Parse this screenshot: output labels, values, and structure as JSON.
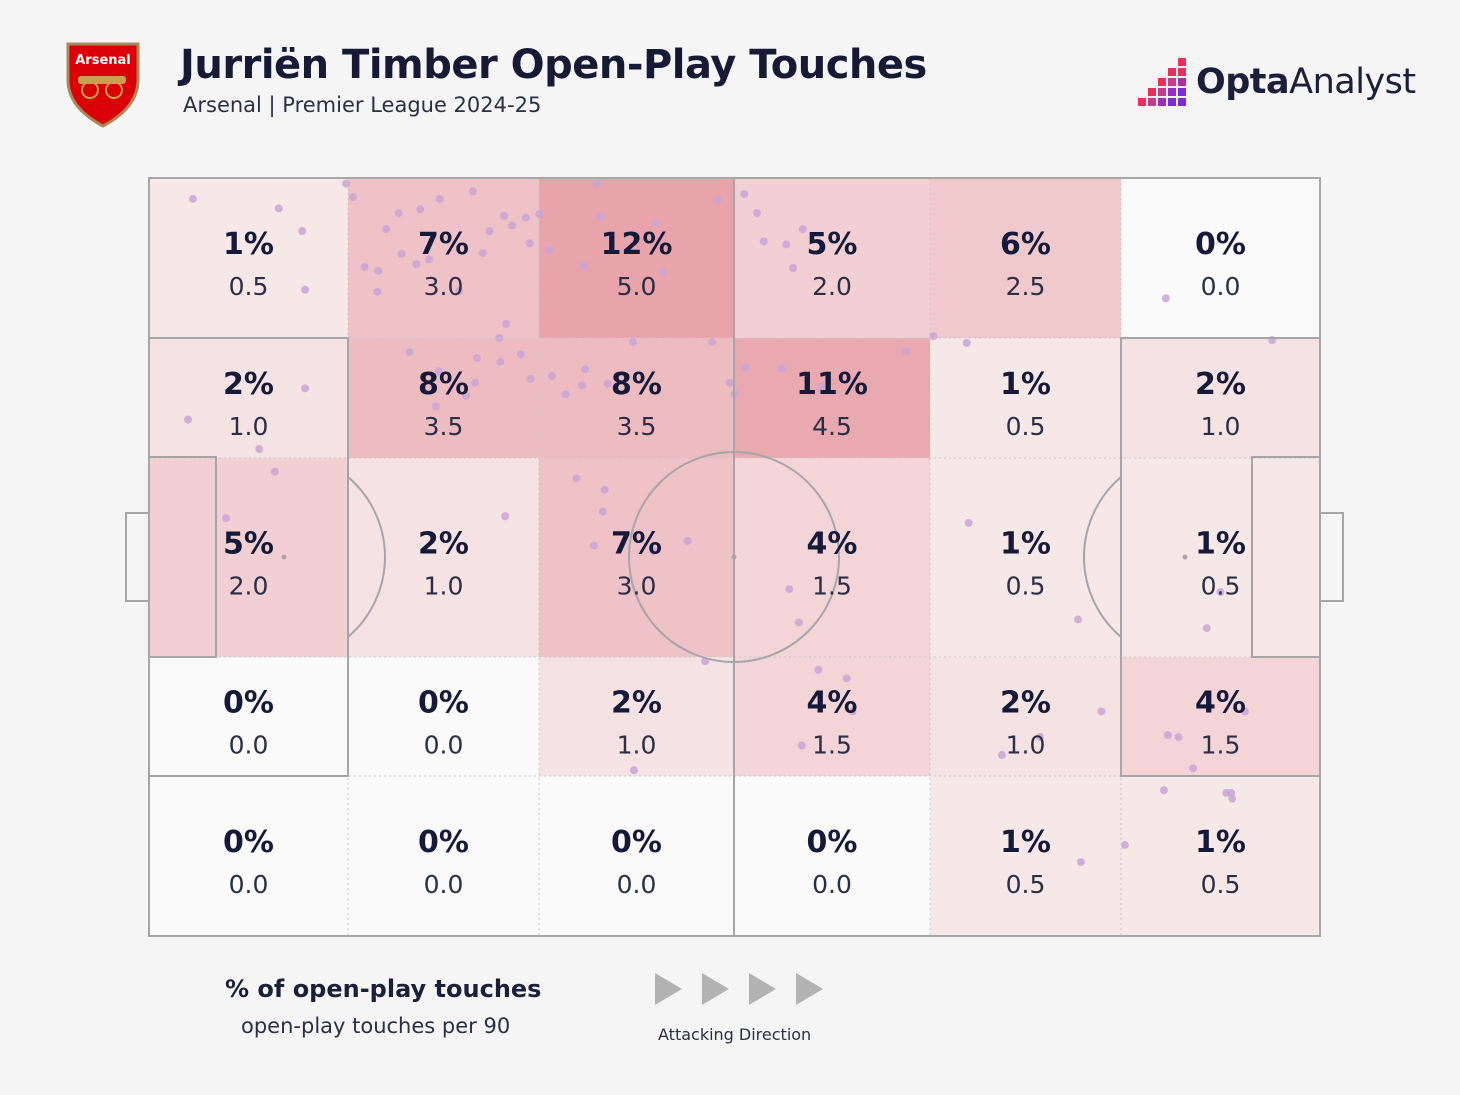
{
  "header": {
    "title": "Jurriën Timber Open-Play Touches",
    "subtitle": "Arsenal | Premier League 2024-25",
    "crest_text": "Arsenal",
    "brand_bold": "Opta",
    "brand_light": "Analyst"
  },
  "colors": {
    "background": "#f5f5f5",
    "heat_max": "#e8a3ab",
    "heat_min": "#f8eeee",
    "line": "#a6a6a6",
    "dot": "#c9a4d6",
    "crest_red": "#db0007",
    "brand_pink": "#e8305b",
    "brand_purple": "#7d2bd6",
    "arrow": "#b3b3b3"
  },
  "chart_data": {
    "type": "heatmap",
    "title": "Jurriën Timber Open-Play Touches",
    "subtitle": "Arsenal | Premier League 2024-25",
    "attacking_direction": "left-to-right",
    "columns": 6,
    "rows": 5,
    "cells": [
      [
        {
          "pct": "1%",
          "per90": "0.5"
        },
        {
          "pct": "7%",
          "per90": "3.0"
        },
        {
          "pct": "12%",
          "per90": "5.0"
        },
        {
          "pct": "5%",
          "per90": "2.0"
        },
        {
          "pct": "6%",
          "per90": "2.5"
        },
        {
          "pct": "0%",
          "per90": "0.0"
        }
      ],
      [
        {
          "pct": "2%",
          "per90": "1.0"
        },
        {
          "pct": "8%",
          "per90": "3.5"
        },
        {
          "pct": "8%",
          "per90": "3.5"
        },
        {
          "pct": "11%",
          "per90": "4.5"
        },
        {
          "pct": "1%",
          "per90": "0.5"
        },
        {
          "pct": "2%",
          "per90": "1.0"
        }
      ],
      [
        {
          "pct": "5%",
          "per90": "2.0"
        },
        {
          "pct": "2%",
          "per90": "1.0"
        },
        {
          "pct": "7%",
          "per90": "3.0"
        },
        {
          "pct": "4%",
          "per90": "1.5"
        },
        {
          "pct": "1%",
          "per90": "0.5"
        },
        {
          "pct": "1%",
          "per90": "0.5"
        }
      ],
      [
        {
          "pct": "0%",
          "per90": "0.0"
        },
        {
          "pct": "0%",
          "per90": "0.0"
        },
        {
          "pct": "2%",
          "per90": "1.0"
        },
        {
          "pct": "4%",
          "per90": "1.5"
        },
        {
          "pct": "2%",
          "per90": "1.0"
        },
        {
          "pct": "4%",
          "per90": "1.5"
        }
      ],
      [
        {
          "pct": "0%",
          "per90": "0.0"
        },
        {
          "pct": "0%",
          "per90": "0.0"
        },
        {
          "pct": "0%",
          "per90": "0.0"
        },
        {
          "pct": "0%",
          "per90": "0.0"
        },
        {
          "pct": "1%",
          "per90": "0.5"
        },
        {
          "pct": "1%",
          "per90": "0.5"
        }
      ]
    ],
    "touch_points_pitch_xy": [
      [
        4.5,
        2.2
      ],
      [
        13.3,
        3.2
      ],
      [
        15.7,
        5.6
      ],
      [
        20.2,
        0.6
      ],
      [
        22.1,
        9.4
      ],
      [
        23.5,
        9.8
      ],
      [
        24.3,
        5.4
      ],
      [
        20.9,
        2.0
      ],
      [
        25.9,
        8.0
      ],
      [
        27.4,
        9.1
      ],
      [
        28.7,
        8.6
      ],
      [
        25.6,
        3.7
      ],
      [
        27.8,
        3.3
      ],
      [
        29.8,
        2.2
      ],
      [
        33.2,
        1.4
      ],
      [
        34.2,
        7.9
      ],
      [
        36.4,
        4.0
      ],
      [
        38.6,
        4.2
      ],
      [
        37.2,
        5.0
      ],
      [
        34.9,
        5.6
      ],
      [
        40.0,
        3.8
      ],
      [
        39.0,
        6.9
      ],
      [
        41.0,
        7.6
      ],
      [
        45.9,
        0.6
      ],
      [
        46.3,
        4.1
      ],
      [
        44.6,
        9.3
      ],
      [
        51.9,
        4.8
      ],
      [
        52.6,
        9.9
      ],
      [
        58.3,
        2.3
      ],
      [
        61.0,
        1.7
      ],
      [
        62.3,
        3.7
      ],
      [
        63.0,
        6.7
      ],
      [
        65.3,
        7.0
      ],
      [
        67.0,
        5.4
      ],
      [
        66.0,
        9.5
      ],
      [
        16.0,
        11.8
      ],
      [
        23.4,
        12.0
      ],
      [
        31.8,
        11.9
      ],
      [
        36.6,
        15.4
      ],
      [
        36.0,
        19.4
      ],
      [
        38.1,
        18.6
      ],
      [
        35.9,
        16.9
      ],
      [
        33.4,
        21.6
      ],
      [
        32.5,
        23.0
      ],
      [
        29.7,
        20.4
      ],
      [
        26.7,
        18.4
      ],
      [
        29.4,
        24.1
      ],
      [
        33.6,
        19.0
      ],
      [
        39.1,
        21.2
      ],
      [
        41.3,
        20.9
      ],
      [
        42.7,
        22.8
      ],
      [
        44.4,
        21.9
      ],
      [
        44.7,
        20.2
      ],
      [
        47.0,
        21.7
      ],
      [
        49.6,
        17.3
      ],
      [
        57.7,
        17.3
      ],
      [
        59.5,
        21.6
      ],
      [
        60.0,
        22.8
      ],
      [
        61.1,
        20.0
      ],
      [
        64.8,
        20.1
      ],
      [
        68.9,
        22.0
      ],
      [
        77.6,
        18.3
      ],
      [
        80.4,
        16.7
      ],
      [
        83.8,
        17.4
      ],
      [
        104.2,
        12.7
      ],
      [
        4.0,
        25.5
      ],
      [
        11.3,
        28.6
      ],
      [
        12.9,
        31.0
      ],
      [
        7.9,
        35.9
      ],
      [
        36.5,
        35.7
      ],
      [
        43.8,
        31.7
      ],
      [
        46.5,
        35.2
      ],
      [
        45.6,
        38.8
      ],
      [
        46.7,
        32.9
      ],
      [
        51.7,
        39.4
      ],
      [
        55.2,
        38.3
      ],
      [
        65.6,
        43.4
      ],
      [
        66.6,
        46.9
      ],
      [
        57.0,
        51.0
      ],
      [
        68.6,
        51.9
      ],
      [
        71.5,
        52.8
      ],
      [
        72.1,
        56.3
      ],
      [
        84.0,
        36.4
      ],
      [
        108.4,
        47.5
      ],
      [
        115.1,
        17.1
      ],
      [
        109.8,
        43.7
      ],
      [
        104.4,
        58.8
      ],
      [
        105.5,
        59.0
      ],
      [
        112.3,
        56.3
      ],
      [
        110.4,
        64.9
      ],
      [
        107.0,
        62.3
      ],
      [
        49.7,
        62.5
      ],
      [
        66.9,
        59.9
      ],
      [
        91.3,
        59.0
      ],
      [
        97.6,
        56.3
      ],
      [
        87.4,
        60.9
      ],
      [
        104.0,
        64.6
      ],
      [
        110.9,
        64.9
      ],
      [
        111.0,
        65.5
      ],
      [
        100.0,
        70.4
      ],
      [
        95.5,
        72.2
      ],
      [
        95.2,
        46.6
      ],
      [
        16.0,
        22.2
      ]
    ]
  },
  "legend": {
    "title": "% of open-play touches",
    "subtitle": "open-play touches per 90",
    "direction_label": "Attacking Direction"
  }
}
